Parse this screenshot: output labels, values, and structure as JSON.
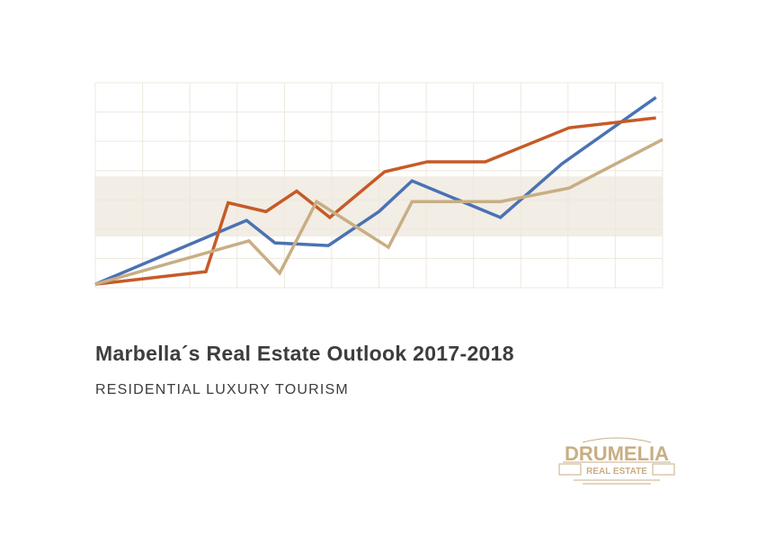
{
  "cover": {
    "title": "Marbella´s Real Estate Outlook 2017-2018",
    "subtitle": "RESIDENTIAL LUXURY TOURISM"
  },
  "logo": {
    "name": "DRUMELIA",
    "tagline": "REAL ESTATE",
    "color": "#c8ae84"
  },
  "chart_data": {
    "type": "line",
    "title": "",
    "xlabel": "",
    "ylabel": "",
    "xlim": [
      0,
      12
    ],
    "ylim": [
      0,
      7
    ],
    "grid": true,
    "legend": "none",
    "highlight_band": {
      "y": [
        1.75,
        3.8
      ],
      "color": "#f2ede5"
    },
    "series": [
      {
        "color": "#4a72b4",
        "points": [
          [
            0,
            0.12
          ],
          [
            3.2,
            2.3
          ],
          [
            3.8,
            1.53
          ],
          [
            4.93,
            1.44
          ],
          [
            6,
            2.6
          ],
          [
            6.7,
            3.65
          ],
          [
            8.57,
            2.4
          ],
          [
            9.87,
            4.23
          ],
          [
            11.86,
            6.5
          ]
        ]
      },
      {
        "color": "#c65a27",
        "points": [
          [
            0,
            0.12
          ],
          [
            2.34,
            0.55
          ],
          [
            2.81,
            2.9
          ],
          [
            3.61,
            2.6
          ],
          [
            4.26,
            3.3
          ],
          [
            4.96,
            2.4
          ],
          [
            6.12,
            3.96
          ],
          [
            7.02,
            4.3
          ],
          [
            8.25,
            4.3
          ],
          [
            10.02,
            5.46
          ],
          [
            11.86,
            5.8
          ]
        ]
      },
      {
        "color": "#c8ae84",
        "points": [
          [
            0,
            0.12
          ],
          [
            3.25,
            1.6
          ],
          [
            3.9,
            0.5
          ],
          [
            4.68,
            2.94
          ],
          [
            6.2,
            1.38
          ],
          [
            6.7,
            2.94
          ],
          [
            8.57,
            2.94
          ],
          [
            10.02,
            3.4
          ],
          [
            12,
            5.06
          ]
        ]
      }
    ]
  }
}
